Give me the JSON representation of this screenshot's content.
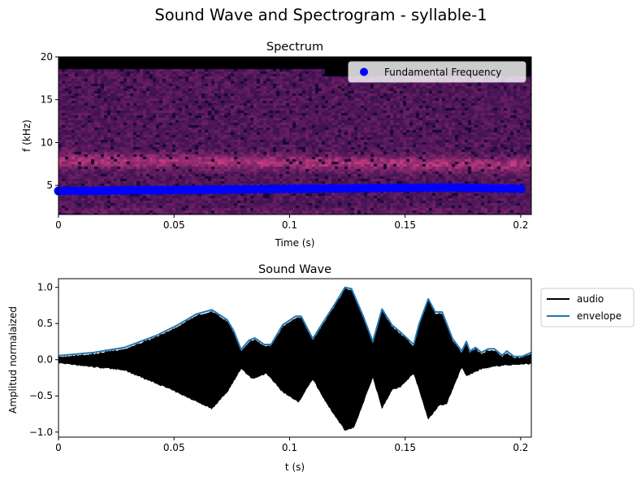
{
  "suptitle": "Sound Wave and Spectrogram - syllable-1",
  "chart_data": [
    {
      "type": "heatmap",
      "title": "Spectrum",
      "xlabel": "Time (s)",
      "ylabel": "f (kHz)",
      "xlim": [
        0,
        0.2046
      ],
      "ylim": [
        1.6,
        20
      ],
      "xticks": [
        "0",
        "0.05",
        "0.1",
        "0.15",
        "0.2"
      ],
      "xtick_values": [
        0,
        0.05,
        0.1,
        0.15,
        0.2
      ],
      "yticks": [
        "5",
        "10",
        "15",
        "20"
      ],
      "ytick_values": [
        5,
        10,
        15,
        20
      ],
      "colormap": "magma",
      "grid": false,
      "legend": {
        "placement": "top-right",
        "entries": [
          "Fundamental Frequency"
        ]
      },
      "series": [
        {
          "name": "Fundamental Frequency",
          "type": "scatter",
          "color": "#0000ff",
          "t_start": 0,
          "t_step": 0.0025,
          "values": [
            4.35,
            4.36,
            4.36,
            4.37,
            4.37,
            4.38,
            4.39,
            4.39,
            4.4,
            4.4,
            4.41,
            4.41,
            4.42,
            4.43,
            4.43,
            4.44,
            4.44,
            4.45,
            4.46,
            4.46,
            4.47,
            4.47,
            4.48,
            4.49,
            4.49,
            4.5,
            4.5,
            4.51,
            4.51,
            4.52,
            4.53,
            4.53,
            4.54,
            4.54,
            4.55,
            4.56,
            4.56,
            4.57,
            4.57,
            4.58,
            4.59,
            4.59,
            4.6,
            4.6,
            4.61,
            4.61,
            4.62,
            4.63,
            4.63,
            4.64,
            4.64,
            4.65,
            4.66,
            4.66,
            4.67,
            4.67,
            4.68,
            4.69,
            4.69,
            4.7,
            4.7,
            4.71,
            4.71,
            4.72,
            4.73,
            4.73,
            4.74,
            4.74,
            4.75,
            4.74,
            4.73,
            4.71,
            4.7,
            4.69,
            4.68,
            4.66,
            4.65,
            4.64,
            4.63,
            4.61,
            4.6
          ]
        }
      ]
    },
    {
      "type": "line",
      "title": "Sound Wave",
      "xlabel": "t (s)",
      "ylabel": "Amplitud normalaized",
      "xlim": [
        0,
        0.2046
      ],
      "ylim": [
        -1.07,
        1.12
      ],
      "xticks": [
        "0",
        "0.05",
        "0.1",
        "0.15",
        "0.2"
      ],
      "xtick_values": [
        0,
        0.05,
        0.1,
        0.15,
        0.2
      ],
      "yticks": [
        "1.0",
        "0.5",
        "0.0",
        "−0.5",
        "−1.0"
      ],
      "ytick_values": [
        1.0,
        0.5,
        0.0,
        -0.5,
        -1.0
      ],
      "grid": false,
      "legend": {
        "placement": "outside-right",
        "entries": [
          "audio",
          "envelope"
        ]
      },
      "series": [
        {
          "name": "audio",
          "color": "#000000",
          "upper": [
            [
              0,
              0.05
            ],
            [
              0.0153,
              0.09
            ],
            [
              0.0287,
              0.16
            ],
            [
              0.042,
              0.32
            ],
            [
              0.0516,
              0.47
            ],
            [
              0.0596,
              0.62
            ],
            [
              0.0664,
              0.68
            ],
            [
              0.073,
              0.54
            ],
            [
              0.0758,
              0.39
            ],
            [
              0.079,
              0.13
            ],
            [
              0.0825,
              0.26
            ],
            [
              0.085,
              0.29
            ],
            [
              0.089,
              0.2
            ],
            [
              0.092,
              0.2
            ],
            [
              0.097,
              0.47
            ],
            [
              0.1026,
              0.59
            ],
            [
              0.105,
              0.59
            ],
            [
              0.11,
              0.28
            ],
            [
              0.116,
              0.58
            ],
            [
              0.12,
              0.78
            ],
            [
              0.124,
              0.99
            ],
            [
              0.1268,
              0.97
            ],
            [
              0.132,
              0.58
            ],
            [
              0.136,
              0.24
            ],
            [
              0.14,
              0.69
            ],
            [
              0.1443,
              0.47
            ],
            [
              0.148,
              0.37
            ],
            [
              0.1537,
              0.2
            ],
            [
              0.156,
              0.48
            ],
            [
              0.16,
              0.83
            ],
            [
              0.163,
              0.65
            ],
            [
              0.166,
              0.65
            ],
            [
              0.1705,
              0.28
            ],
            [
              0.1745,
              0.11
            ],
            [
              0.1765,
              0.24
            ],
            [
              0.178,
              0.11
            ],
            [
              0.1805,
              0.16
            ],
            [
              0.183,
              0.09
            ],
            [
              0.186,
              0.14
            ],
            [
              0.1886,
              0.14
            ],
            [
              0.192,
              0.05
            ],
            [
              0.194,
              0.11
            ],
            [
              0.197,
              0.04
            ],
            [
              0.2007,
              0.04
            ],
            [
              0.2046,
              0.09
            ]
          ],
          "lower": [
            [
              0,
              -0.057
            ],
            [
              0.0287,
              -0.16
            ],
            [
              0.049,
              -0.43
            ],
            [
              0.0664,
              -0.69
            ],
            [
              0.073,
              -0.46
            ],
            [
              0.079,
              -0.14
            ],
            [
              0.084,
              -0.28
            ],
            [
              0.09,
              -0.2
            ],
            [
              0.097,
              -0.46
            ],
            [
              0.104,
              -0.6
            ],
            [
              0.11,
              -0.28
            ],
            [
              0.116,
              -0.62
            ],
            [
              0.124,
              -0.99
            ],
            [
              0.128,
              -0.95
            ],
            [
              0.136,
              -0.26
            ],
            [
              0.14,
              -0.69
            ],
            [
              0.1443,
              -0.43
            ],
            [
              0.148,
              -0.39
            ],
            [
              0.1537,
              -0.2
            ],
            [
              0.16,
              -0.84
            ],
            [
              0.1645,
              -0.65
            ],
            [
              0.168,
              -0.62
            ],
            [
              0.1745,
              -0.12
            ],
            [
              0.1765,
              -0.24
            ],
            [
              0.183,
              -0.14
            ],
            [
              0.192,
              -0.09
            ],
            [
              0.2046,
              -0.07
            ]
          ]
        },
        {
          "name": "envelope",
          "color": "#1f77b4",
          "points": [
            [
              0,
              0.056
            ],
            [
              0.0153,
              0.1
            ],
            [
              0.0287,
              0.17
            ],
            [
              0.042,
              0.33
            ],
            [
              0.0516,
              0.48
            ],
            [
              0.0596,
              0.63
            ],
            [
              0.0664,
              0.69
            ],
            [
              0.073,
              0.55
            ],
            [
              0.0758,
              0.4
            ],
            [
              0.079,
              0.14
            ],
            [
              0.0825,
              0.27
            ],
            [
              0.085,
              0.3
            ],
            [
              0.089,
              0.21
            ],
            [
              0.092,
              0.21
            ],
            [
              0.097,
              0.48
            ],
            [
              0.1026,
              0.6
            ],
            [
              0.105,
              0.6
            ],
            [
              0.11,
              0.29
            ],
            [
              0.116,
              0.59
            ],
            [
              0.12,
              0.79
            ],
            [
              0.124,
              1.0
            ],
            [
              0.1268,
              0.98
            ],
            [
              0.132,
              0.59
            ],
            [
              0.136,
              0.25
            ],
            [
              0.14,
              0.7
            ],
            [
              0.1443,
              0.48
            ],
            [
              0.148,
              0.38
            ],
            [
              0.1537,
              0.21
            ],
            [
              0.156,
              0.49
            ],
            [
              0.16,
              0.84
            ],
            [
              0.163,
              0.66
            ],
            [
              0.166,
              0.66
            ],
            [
              0.1705,
              0.29
            ],
            [
              0.1745,
              0.12
            ],
            [
              0.1765,
              0.25
            ],
            [
              0.178,
              0.12
            ],
            [
              0.1805,
              0.17
            ],
            [
              0.183,
              0.1
            ],
            [
              0.186,
              0.15
            ],
            [
              0.1886,
              0.15
            ],
            [
              0.192,
              0.06
            ],
            [
              0.194,
              0.12
            ],
            [
              0.197,
              0.045
            ],
            [
              0.2007,
              0.045
            ],
            [
              0.2046,
              0.1
            ]
          ]
        }
      ]
    }
  ]
}
